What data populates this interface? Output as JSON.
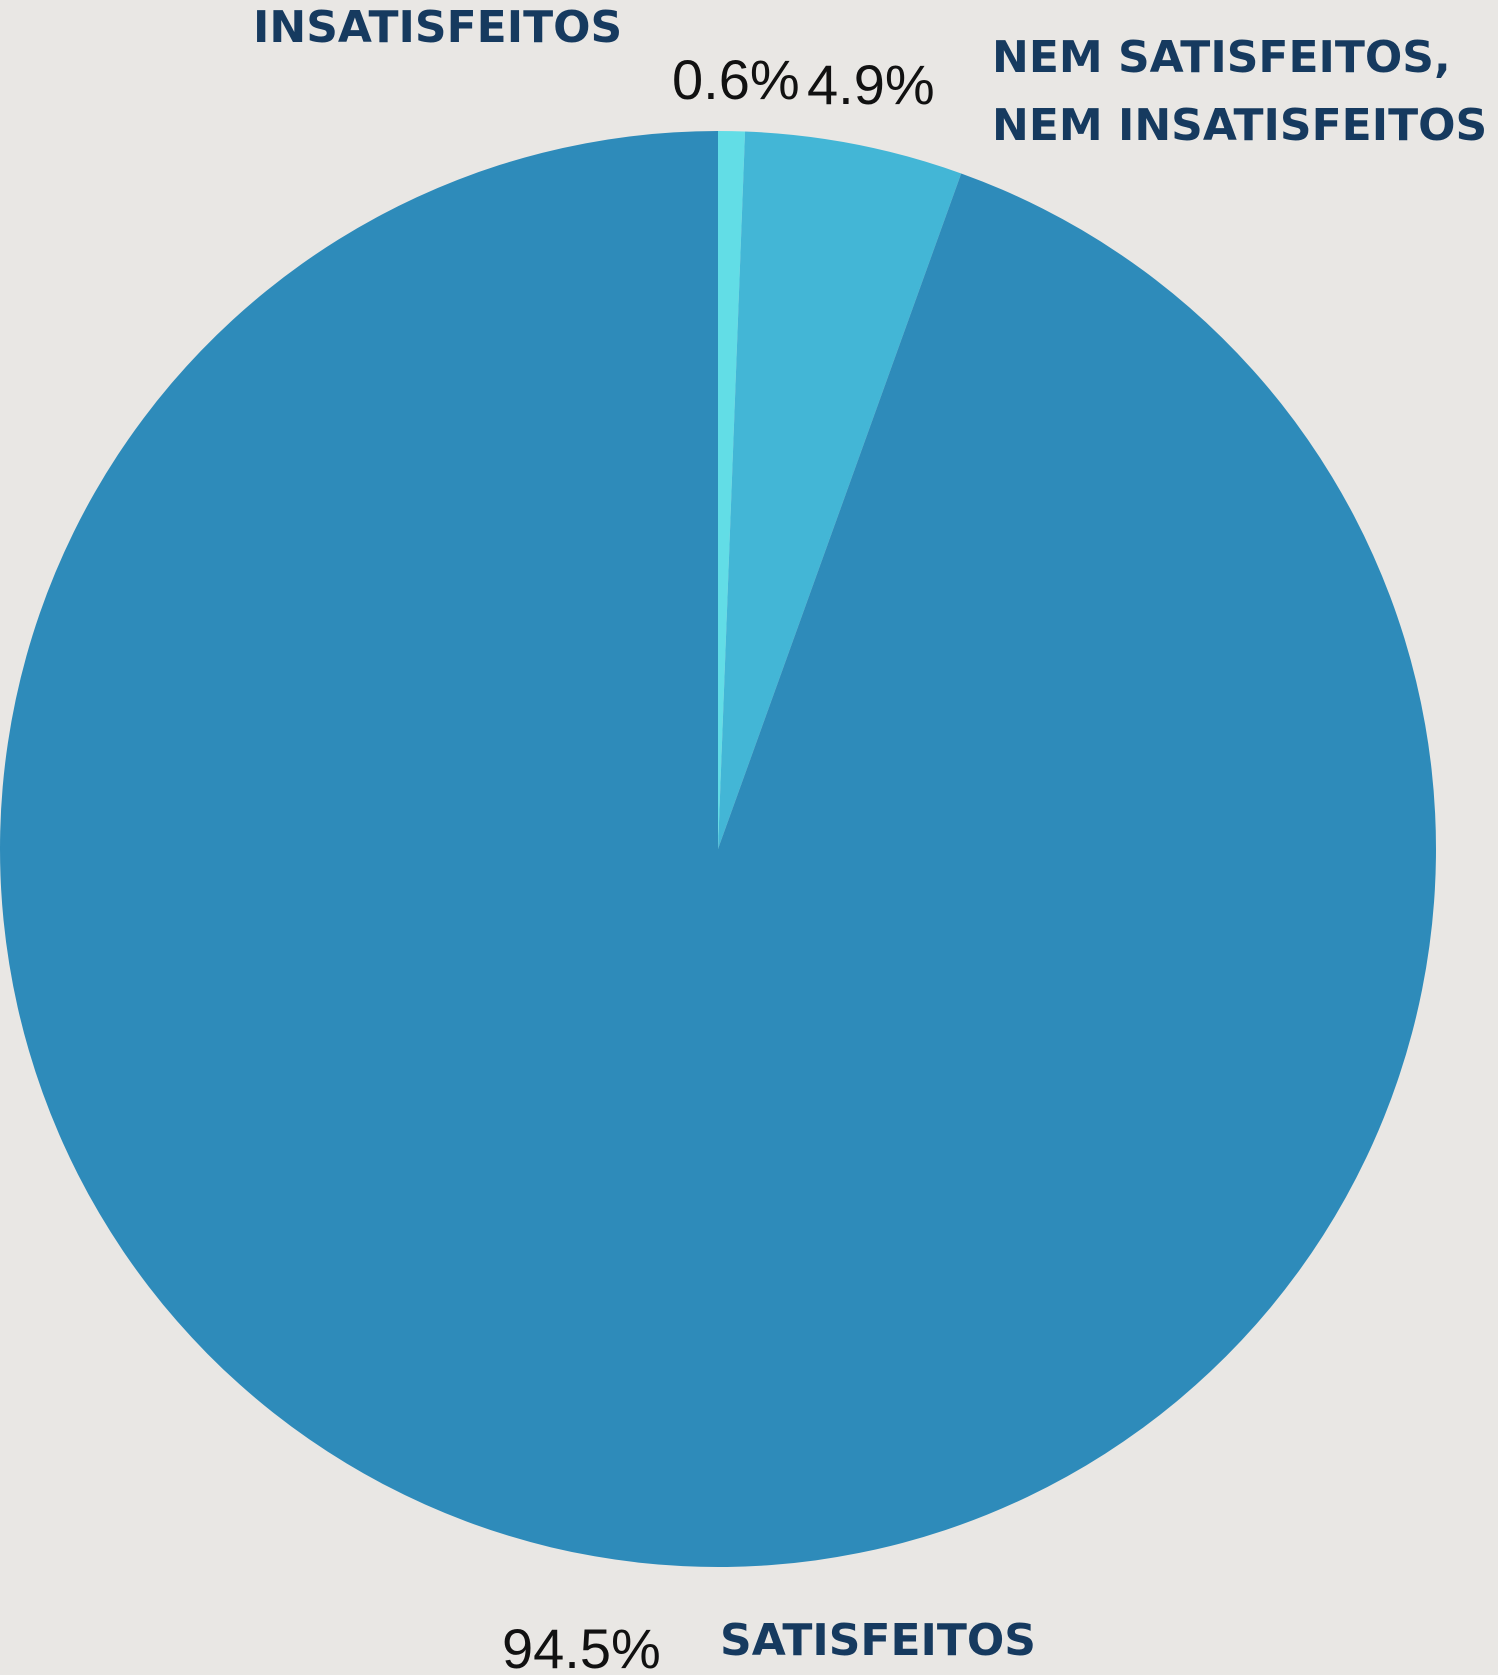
{
  "chart_data": {
    "type": "pie",
    "slices": [
      {
        "label": "INSATISFEITOS",
        "value": 0.6,
        "display": "0.6%",
        "color": "#62dde6"
      },
      {
        "label": "NEM SATISFEITOS,\nNEM INSATISFEITOS",
        "value": 4.9,
        "display": "4.9%",
        "color": "#43b6d6"
      },
      {
        "label": "SATISFEITOS",
        "value": 94.5,
        "display": "94.5%",
        "color": "#2e8bba"
      }
    ],
    "start_angle": "top",
    "direction": "clockwise",
    "background": "#e9e7e4",
    "label_color": "#163a5f"
  }
}
